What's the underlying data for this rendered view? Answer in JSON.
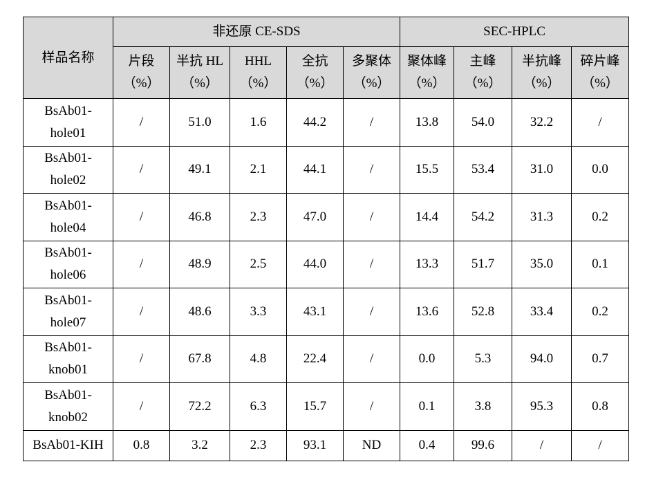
{
  "table": {
    "header": {
      "sample": "样品名称",
      "groups": [
        {
          "label": "非还原 CE-SDS",
          "columns": [
            {
              "name": "片段",
              "unit": "（%）"
            },
            {
              "name": "半抗 HL",
              "unit": "（%）"
            },
            {
              "name": "HHL",
              "unit": "（%）"
            },
            {
              "name": "全抗",
              "unit": "（%）"
            },
            {
              "name": "多聚体",
              "unit": "（%）"
            }
          ]
        },
        {
          "label": "SEC-HPLC",
          "columns": [
            {
              "name": "聚体峰",
              "unit": "（%）"
            },
            {
              "name": "主峰",
              "unit": "（%）"
            },
            {
              "name": "半抗峰",
              "unit": "（%）"
            },
            {
              "name": "碎片峰",
              "unit": "（%）"
            }
          ]
        }
      ]
    },
    "rows": [
      {
        "name": "BsAb01-hole01",
        "cells": [
          "/",
          "51.0",
          "1.6",
          "44.2",
          "/",
          "13.8",
          "54.0",
          "32.2",
          "/"
        ]
      },
      {
        "name": "BsAb01-hole02",
        "cells": [
          "/",
          "49.1",
          "2.1",
          "44.1",
          "/",
          "15.5",
          "53.4",
          "31.0",
          "0.0"
        ]
      },
      {
        "name": "BsAb01-hole04",
        "cells": [
          "/",
          "46.8",
          "2.3",
          "47.0",
          "/",
          "14.4",
          "54.2",
          "31.3",
          "0.2"
        ]
      },
      {
        "name": "BsAb01-hole06",
        "cells": [
          "/",
          "48.9",
          "2.5",
          "44.0",
          "/",
          "13.3",
          "51.7",
          "35.0",
          "0.1"
        ]
      },
      {
        "name": "BsAb01-hole07",
        "cells": [
          "/",
          "48.6",
          "3.3",
          "43.1",
          "/",
          "13.6",
          "52.8",
          "33.4",
          "0.2"
        ]
      },
      {
        "name": "BsAb01-knob01",
        "cells": [
          "/",
          "67.8",
          "4.8",
          "22.4",
          "/",
          "0.0",
          "5.3",
          "94.0",
          "0.7"
        ]
      },
      {
        "name": "BsAb01-knob02",
        "cells": [
          "/",
          "72.2",
          "6.3",
          "15.7",
          "/",
          "0.1",
          "3.8",
          "95.3",
          "0.8"
        ]
      },
      {
        "name": "BsAb01-KIH",
        "cells": [
          "0.8",
          "3.2",
          "2.3",
          "93.1",
          "ND",
          "0.4",
          "99.6",
          "/",
          "/"
        ]
      }
    ]
  }
}
